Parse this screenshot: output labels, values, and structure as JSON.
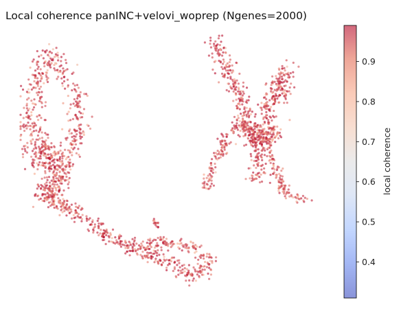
{
  "chart_data": {
    "type": "scatter",
    "title": "Local coherence panINC+velovi_woprep (Ngenes=2000)",
    "xlabel": "",
    "ylabel": "",
    "axes_visible": false,
    "point_size_note": "small dots",
    "colorbar": {
      "label": "local coherence",
      "colormap": "coolwarm",
      "alpha": 0.6,
      "vmin": 0.31,
      "vmax": 0.99,
      "ticks": [
        "0.4",
        "0.5",
        "0.6",
        "0.7",
        "0.8",
        "0.9"
      ],
      "colors": {
        "low": "#3b4cc0",
        "mid": "#dddddd",
        "high": "#b40426"
      }
    },
    "series": [
      {
        "coherence_range": [
          0.75,
          0.99
        ],
        "typical_coherence": 0.92
      }
    ]
  }
}
